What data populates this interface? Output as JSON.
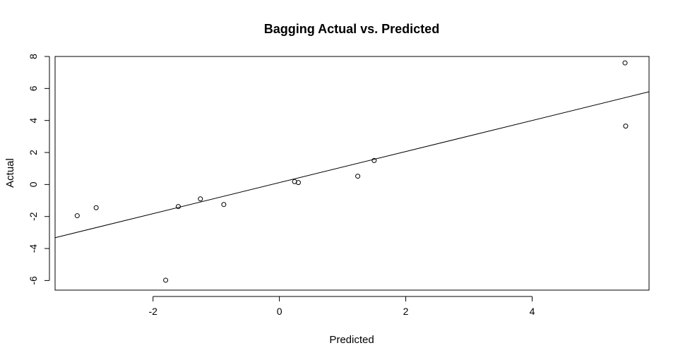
{
  "chart_data": {
    "type": "scatter",
    "title": "Bagging Actual vs. Predicted",
    "xlabel": "Predicted",
    "ylabel": "Actual",
    "xlim": [
      -3.55,
      5.85
    ],
    "ylim": [
      -6.6,
      8.0
    ],
    "xticks": [
      -2,
      0,
      2,
      4
    ],
    "yticks": [
      -6,
      -4,
      -2,
      0,
      2,
      4,
      6,
      8
    ],
    "grid": false,
    "legend": "none",
    "points": [
      {
        "x": -3.2,
        "y": -1.95
      },
      {
        "x": -2.9,
        "y": -1.45
      },
      {
        "x": -1.8,
        "y": -5.98
      },
      {
        "x": -1.6,
        "y": -1.38
      },
      {
        "x": -1.25,
        "y": -0.9
      },
      {
        "x": -0.88,
        "y": -1.25
      },
      {
        "x": 0.24,
        "y": 0.18
      },
      {
        "x": 0.3,
        "y": 0.12
      },
      {
        "x": 1.24,
        "y": 0.52
      },
      {
        "x": 1.5,
        "y": 1.5
      },
      {
        "x": 5.47,
        "y": 7.6
      },
      {
        "x": 5.48,
        "y": 3.65
      }
    ],
    "fit_line": {
      "intercept": 0.12,
      "slope": 0.97
    }
  }
}
